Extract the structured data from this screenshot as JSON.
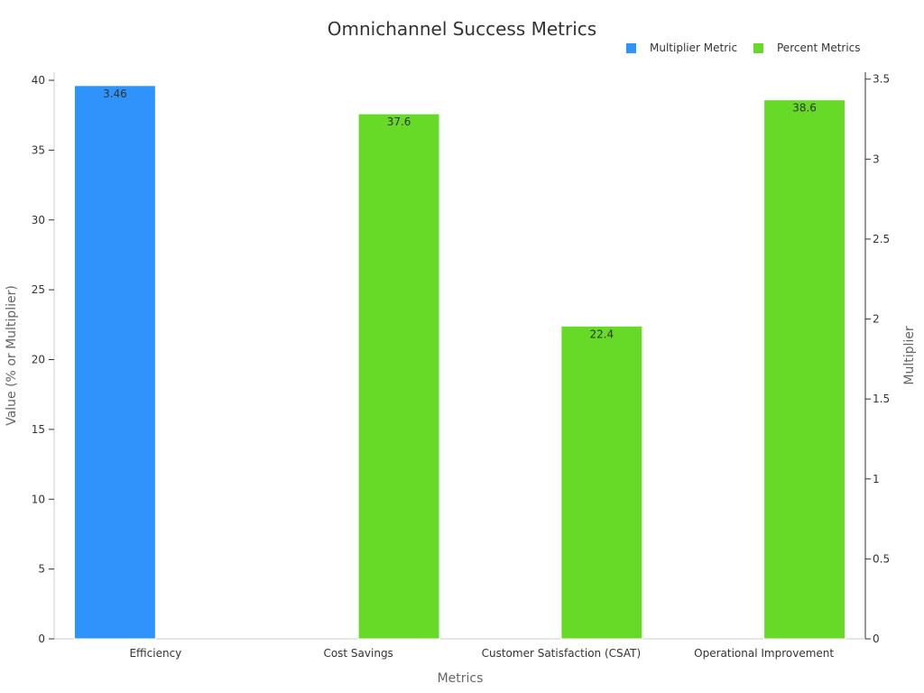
{
  "chart_data": {
    "type": "bar",
    "title": "Omnichannel Success Metrics",
    "xlabel": "Metrics",
    "ylabel": "Value (% or Multiplier)",
    "y2label": "Multiplier",
    "categories": [
      "Efficiency",
      "Cost Savings",
      "Customer Satisfaction (CSAT)",
      "Operational Improvement"
    ],
    "series": [
      {
        "name": "Multiplier Metric",
        "axis": "right",
        "color": "#2e93fa",
        "values": [
          3.46,
          null,
          null,
          null
        ],
        "labels": [
          "3.46",
          "",
          "",
          ""
        ]
      },
      {
        "name": "Percent Metrics",
        "axis": "left",
        "color": "#66da26",
        "values": [
          null,
          37.6,
          22.4,
          38.6
        ],
        "labels": [
          "",
          "37.6",
          "22.4",
          "38.6"
        ]
      }
    ],
    "ylim": [
      0,
      40
    ],
    "y2lim": [
      0,
      3.6
    ],
    "yticks": [
      "0",
      "5",
      "10",
      "15",
      "20",
      "25",
      "30",
      "35",
      "40"
    ],
    "y2ticks": [
      "0",
      "0.5",
      "1",
      "1.5",
      "2",
      "2.5",
      "3",
      "3.5"
    ],
    "legend_position": "top-right",
    "grid": false
  }
}
